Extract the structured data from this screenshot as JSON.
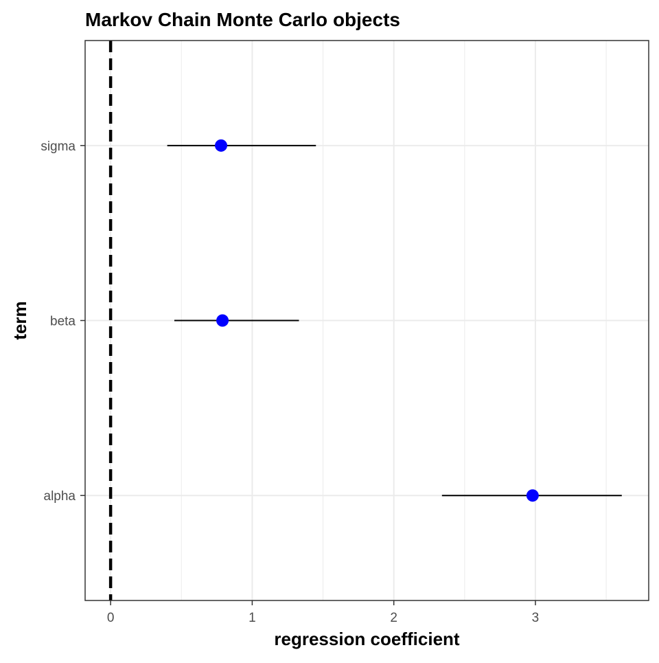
{
  "chart_data": {
    "type": "scatter",
    "title": "Markov Chain Monte Carlo objects",
    "xlabel": "regression coefficient",
    "ylabel": "term",
    "xlim": [
      -0.18,
      3.8
    ],
    "x_ticks": [
      0,
      1,
      2,
      3
    ],
    "x_tick_labels": [
      "0",
      "1",
      "2",
      "3"
    ],
    "categories": [
      "alpha",
      "beta",
      "sigma"
    ],
    "points": [
      {
        "term": "alpha",
        "estimate": 2.98,
        "conf_low": 2.34,
        "conf_high": 3.61
      },
      {
        "term": "beta",
        "estimate": 0.79,
        "conf_low": 0.45,
        "conf_high": 1.33
      },
      {
        "term": "sigma",
        "estimate": 0.78,
        "conf_low": 0.4,
        "conf_high": 1.45
      }
    ],
    "reference_line": {
      "x": 0,
      "style": "dashed"
    },
    "grid": true,
    "colors": {
      "point": "#0000ff",
      "interval": "#000000",
      "reference_line": "#000000",
      "grid": "#ebebeb",
      "panel_border": "#333333"
    }
  }
}
